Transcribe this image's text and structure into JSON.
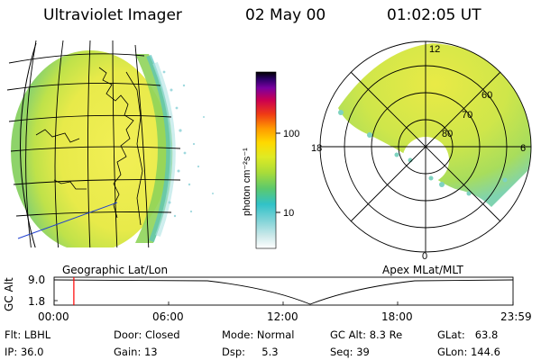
{
  "header": {
    "instrument": "Ultraviolet Imager",
    "date": "02 May 00",
    "time": "01:02:05 UT"
  },
  "colorbar": {
    "label": "photon cm⁻²s⁻¹",
    "tick_labels": [
      "100",
      "10"
    ],
    "scale": "log",
    "colors": [
      "#ffffff",
      "#cde9ea",
      "#7fd3d7",
      "#31c2c8",
      "#5cc96c",
      "#a9dc39",
      "#e0ea23",
      "#ffd900",
      "#ff9a00",
      "#f03c14",
      "#cc0050",
      "#7a00a0",
      "#2a0065",
      "#000000"
    ]
  },
  "left_panel": {
    "caption": "Geographic Lat/Lon"
  },
  "right_panel": {
    "caption": "Apex MLat/MLT",
    "mlt_labels": [
      "12",
      "18",
      "6",
      "0"
    ],
    "lat_labels": [
      "60",
      "70",
      "80"
    ]
  },
  "altitude_plot": {
    "ylabel": "GC Alt",
    "y_ticks": [
      "9.0",
      "1.8"
    ],
    "x_ticks": [
      "00:00",
      "06:00",
      "12:00",
      "18:00",
      "23:59"
    ],
    "current_time_marker_fraction": 0.043,
    "marker_color": "#ff0000"
  },
  "info": {
    "flt": "Flt: LBHL",
    "ip": "IP: 36.0",
    "door": "Door: Closed",
    "gain": "Gain: 13",
    "mode": "Mode: Normal",
    "dsp": "Dsp:     5.3",
    "gcalt": "GC Alt: 8.3 Re",
    "seq": "Seq: 39",
    "glat": "GLat:   63.8",
    "glon": "GLon: 144.6"
  }
}
